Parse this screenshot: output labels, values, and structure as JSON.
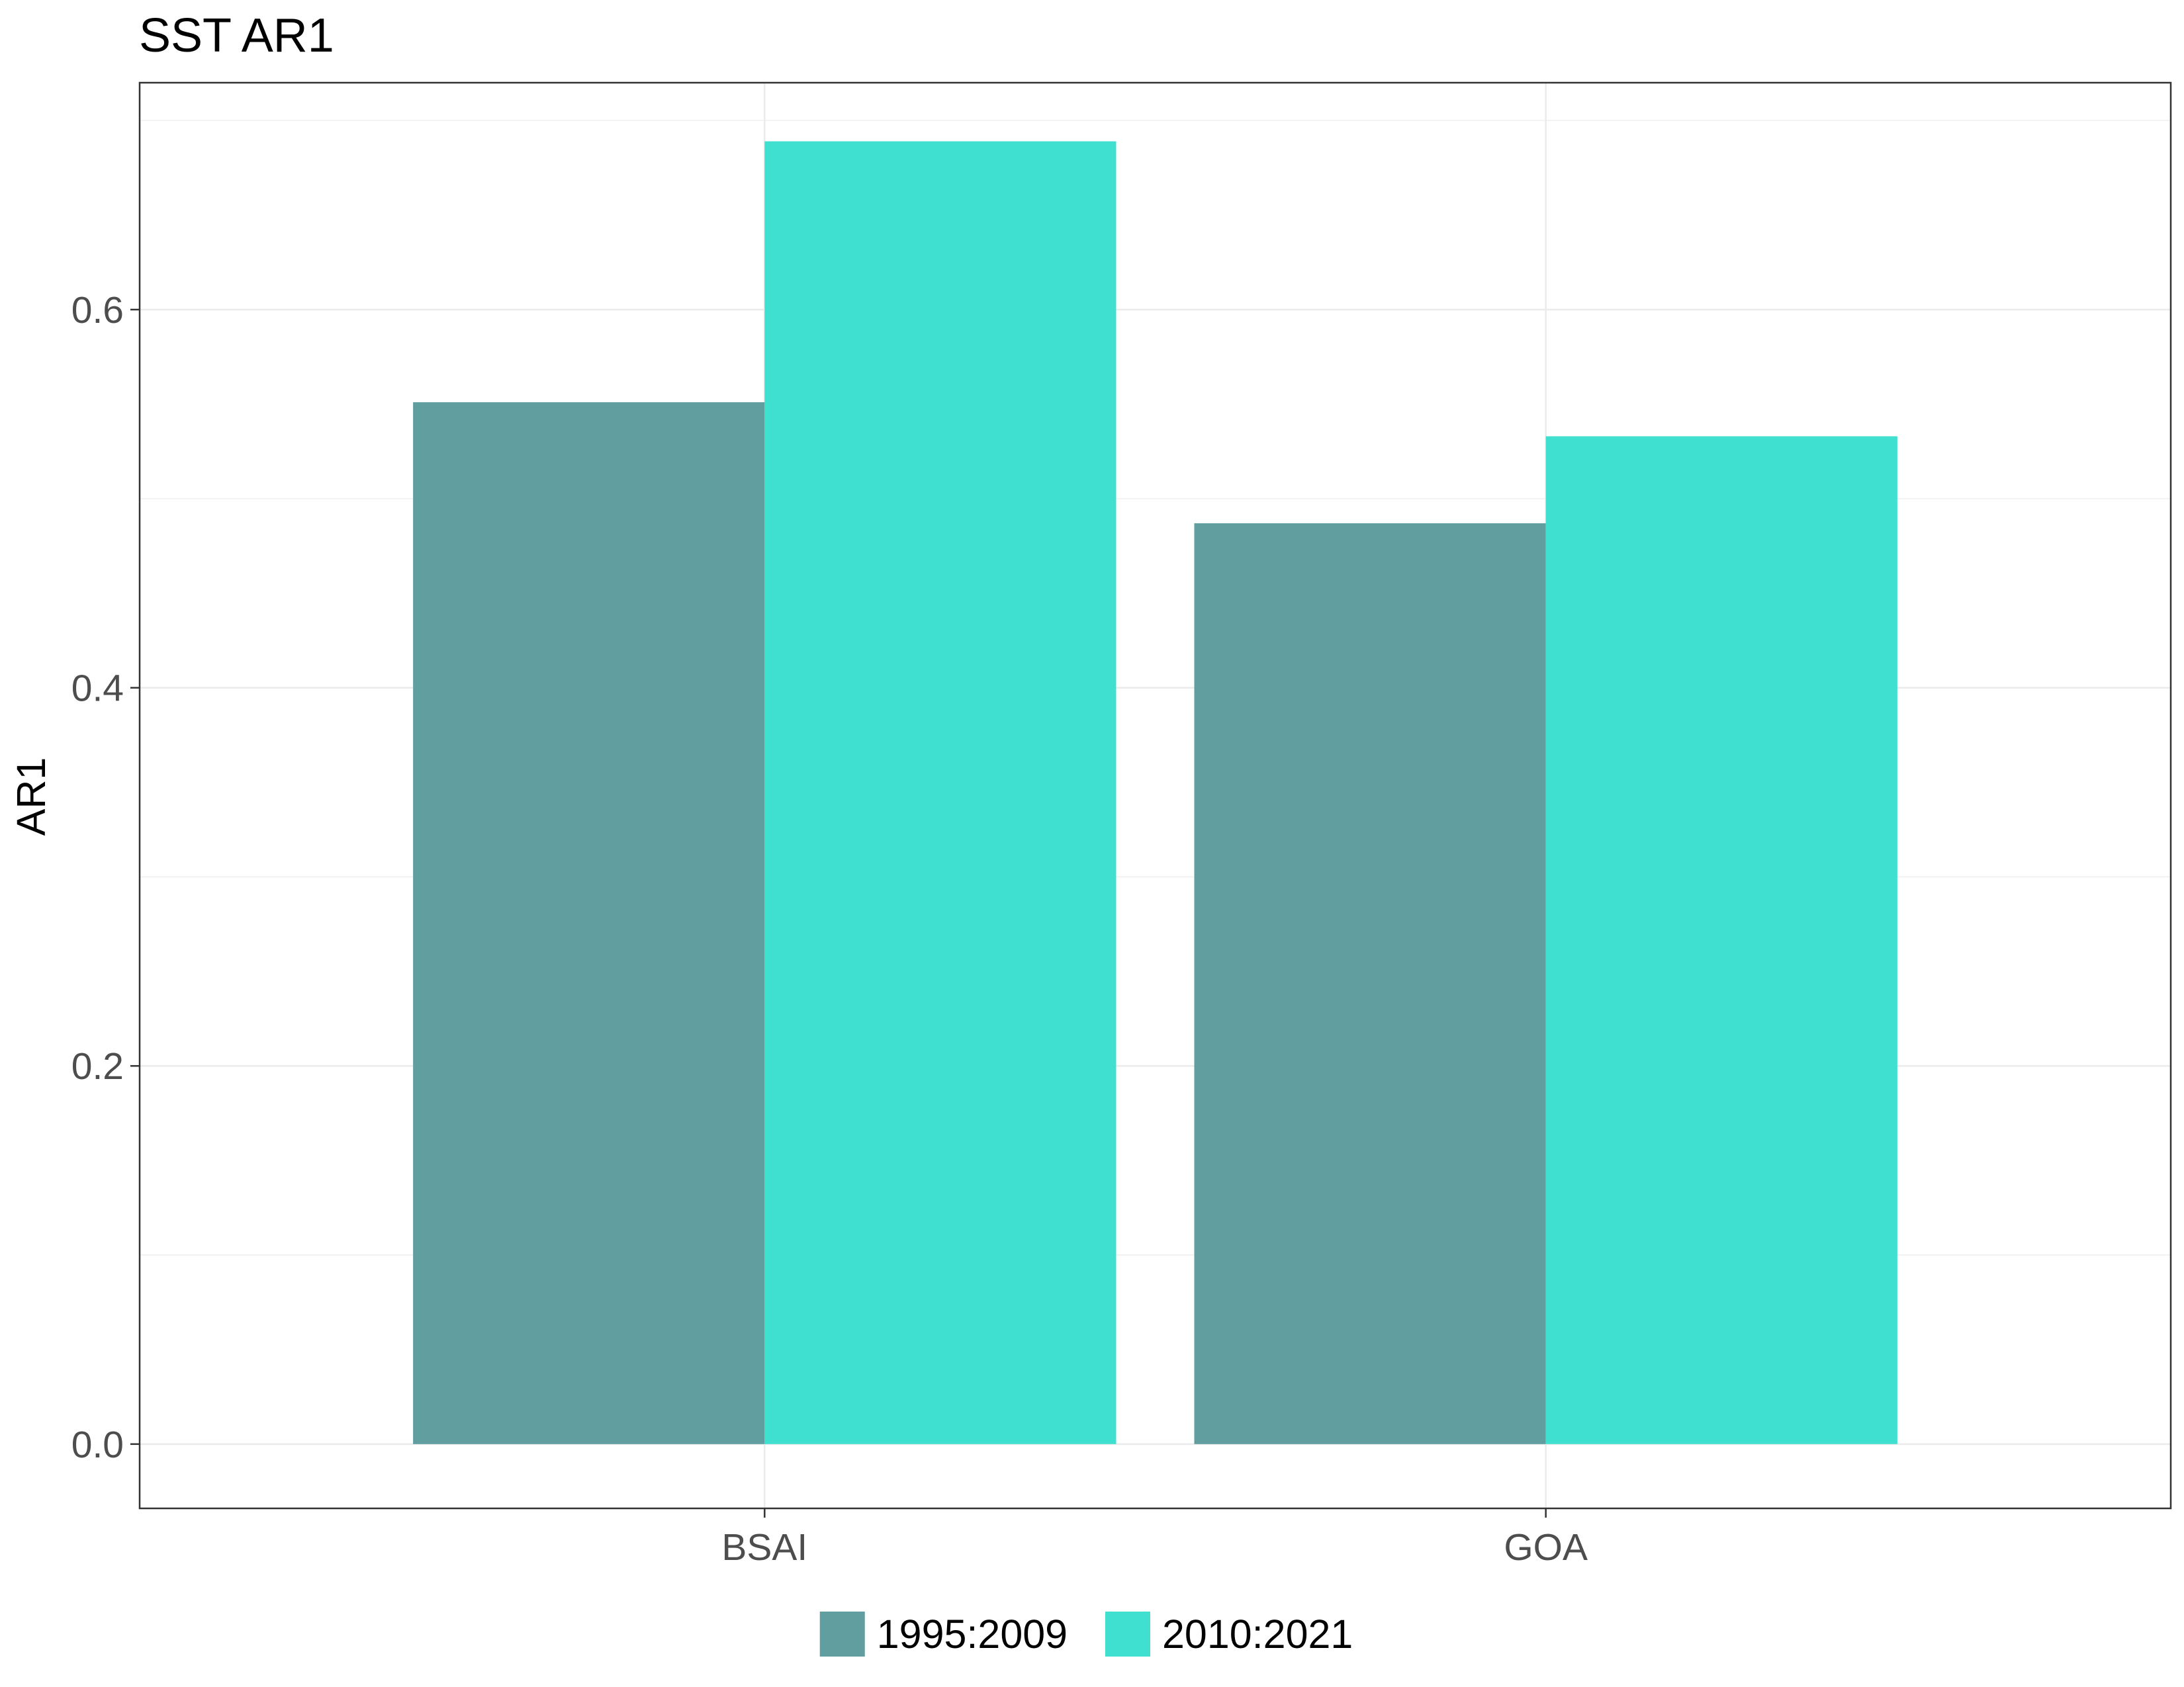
{
  "chart_data": {
    "type": "bar",
    "title": "SST AR1",
    "xlabel": "",
    "ylabel": "AR1",
    "categories": [
      "BSAI",
      "GOA"
    ],
    "series": [
      {
        "name": "1995:2009",
        "color": "#619ea0",
        "values": [
          0.551,
          0.487
        ]
      },
      {
        "name": "2010:2021",
        "color": "#40e0d0",
        "values": [
          0.689,
          0.533
        ]
      }
    ],
    "ylim": [
      -0.034,
      0.72
    ],
    "yticks": [
      "0.0",
      "0.2",
      "0.4",
      "0.6"
    ],
    "grid": true,
    "legend_position": "bottom"
  }
}
